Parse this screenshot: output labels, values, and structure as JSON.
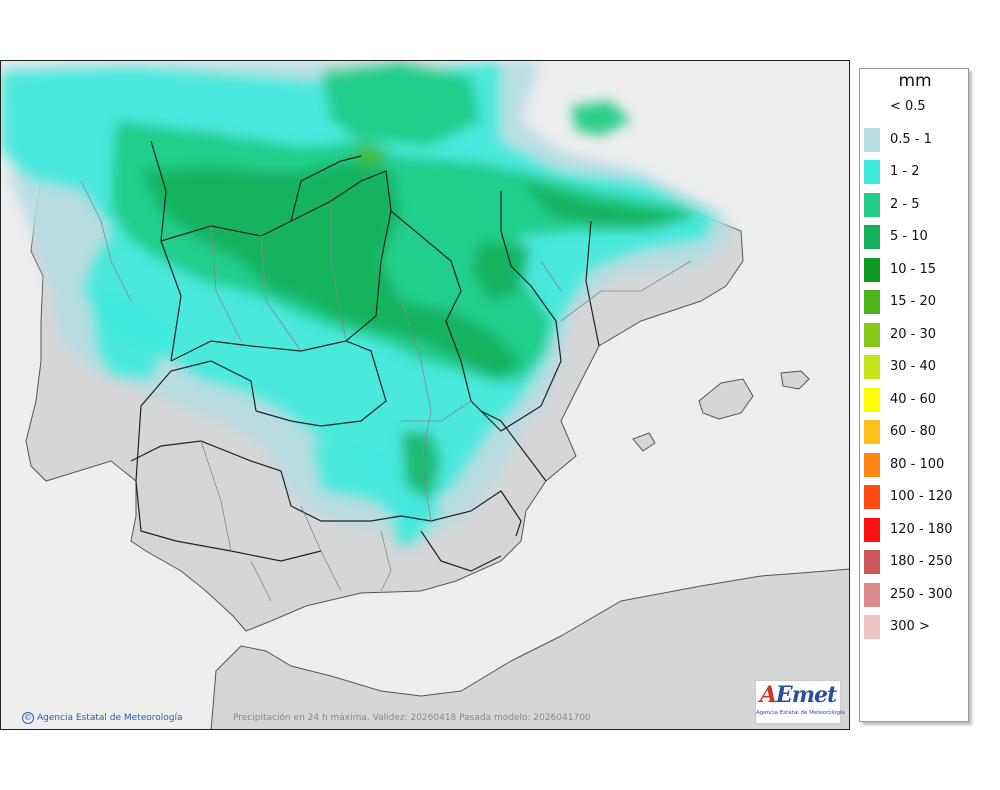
{
  "legend": {
    "unit": "mm",
    "classes": [
      {
        "label": "< 0.5",
        "color": "#ffffff"
      },
      {
        "label": "0.5 - 1",
        "color": "#b6dde2"
      },
      {
        "label": "1 - 2",
        "color": "#3eeadd"
      },
      {
        "label": "2 - 5",
        "color": "#22cc88"
      },
      {
        "label": "5 - 10",
        "color": "#14b05a"
      },
      {
        "label": "10 - 15",
        "color": "#0e9a1e"
      },
      {
        "label": "15 - 20",
        "color": "#4cb41c"
      },
      {
        "label": "20 - 30",
        "color": "#86c81a"
      },
      {
        "label": "30 - 40",
        "color": "#c4e318"
      },
      {
        "label": "40 - 60",
        "color": "#ffff00"
      },
      {
        "label": "60 - 80",
        "color": "#ffbf1a"
      },
      {
        "label": "80 - 100",
        "color": "#ff8410"
      },
      {
        "label": "100 - 120",
        "color": "#ff4a10"
      },
      {
        "label": "120 - 180",
        "color": "#ff1010"
      },
      {
        "label": "180 - 250",
        "color": "#cc5555"
      },
      {
        "label": "250 - 300",
        "color": "#dd8c8c"
      },
      {
        "label": "300 >",
        "color": "#efc4c4"
      }
    ]
  },
  "map": {
    "caption": "Precipitación en 24 h máxima. Validez: 20260418 Pasada modelo: 2026041700",
    "copyright": "Agencia Estatal de Meteorología",
    "logo_text": "AEmet",
    "logo_subtitle": "Agencia Estatal de Meteorología",
    "colors": {
      "sea": "#eeeeee",
      "land": "#d6d6d6",
      "border": "#222222"
    }
  }
}
